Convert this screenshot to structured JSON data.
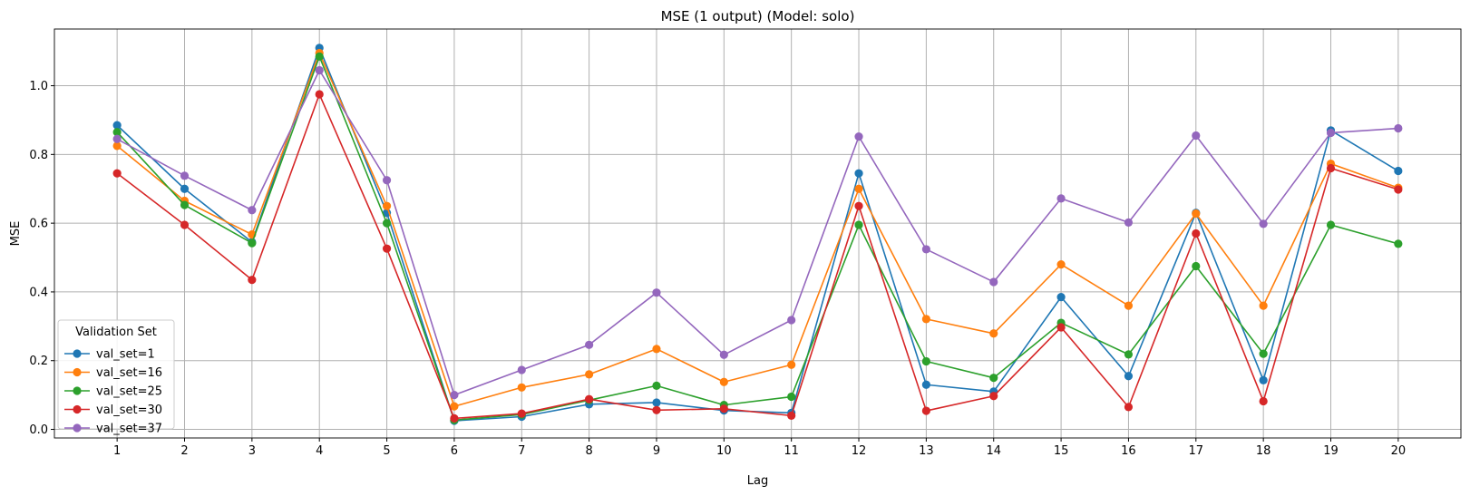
{
  "chart_data": {
    "type": "line",
    "title": "MSE (1 output) (Model: solo)",
    "xlabel": "Lag",
    "ylabel": "MSE",
    "x": [
      1,
      2,
      3,
      4,
      5,
      6,
      7,
      8,
      9,
      10,
      11,
      12,
      13,
      14,
      15,
      16,
      17,
      18,
      19,
      20
    ],
    "xlim": [
      0.07,
      20.93
    ],
    "ylim": [
      -0.025,
      1.165
    ],
    "yticks": [
      0.0,
      0.2,
      0.4,
      0.6,
      0.8,
      1.0
    ],
    "ytick_labels": [
      "0.0",
      "0.2",
      "0.4",
      "0.6",
      "0.8",
      "1.0"
    ],
    "grid": true,
    "marker": "circle",
    "legend": {
      "title": "Validation Set",
      "placement": "lower-left"
    },
    "series": [
      {
        "name": "val_set=1",
        "color": "#1f77b4",
        "values": [
          0.885,
          0.7,
          0.545,
          1.11,
          0.63,
          0.025,
          0.037,
          0.073,
          0.078,
          0.055,
          0.048,
          0.745,
          0.13,
          0.11,
          0.385,
          0.155,
          0.63,
          0.143,
          0.87,
          0.752
        ]
      },
      {
        "name": "val_set=16",
        "color": "#ff7f0e",
        "values": [
          0.825,
          0.665,
          0.567,
          1.095,
          0.65,
          0.067,
          0.122,
          0.16,
          0.234,
          0.138,
          0.188,
          0.7,
          0.321,
          0.279,
          0.48,
          0.36,
          0.628,
          0.36,
          0.773,
          0.703
        ]
      },
      {
        "name": "val_set=25",
        "color": "#2ca02c",
        "values": [
          0.865,
          0.653,
          0.542,
          1.085,
          0.6,
          0.027,
          0.043,
          0.085,
          0.127,
          0.071,
          0.095,
          0.595,
          0.198,
          0.15,
          0.31,
          0.218,
          0.475,
          0.22,
          0.595,
          0.54
        ]
      },
      {
        "name": "val_set=30",
        "color": "#d62728",
        "values": [
          0.745,
          0.595,
          0.435,
          0.975,
          0.526,
          0.032,
          0.046,
          0.088,
          0.056,
          0.06,
          0.04,
          0.65,
          0.054,
          0.097,
          0.297,
          0.065,
          0.57,
          0.082,
          0.76,
          0.698
        ]
      },
      {
        "name": "val_set=37",
        "color": "#9467bd",
        "values": [
          0.845,
          0.738,
          0.638,
          1.045,
          0.725,
          0.1,
          0.173,
          0.246,
          0.398,
          0.217,
          0.318,
          0.852,
          0.524,
          0.429,
          0.672,
          0.602,
          0.855,
          0.598,
          0.863,
          0.876
        ]
      }
    ]
  }
}
